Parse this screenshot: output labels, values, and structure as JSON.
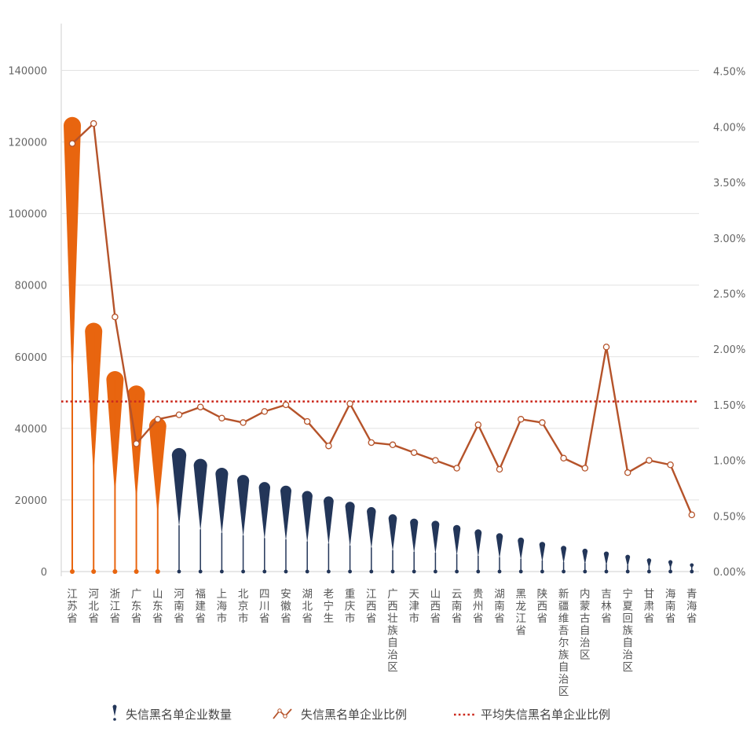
{
  "chart_data": {
    "type": "bar+line",
    "categories": [
      "江苏省",
      "河北省",
      "浙江省",
      "广东省",
      "山东省",
      "河南省",
      "福建省",
      "上海市",
      "北京市",
      "四川省",
      "安徽省",
      "湖北省",
      "老宁生",
      "重庆市",
      "江西省",
      "广西壮族自治区",
      "天津市",
      "山西省",
      "云南省",
      "贵州省",
      "湖南省",
      "黑龙江省",
      "陕西省",
      "新疆维吾尔族自治区",
      "内蒙古自治区",
      "吉林省",
      "宁夏回族自治区",
      "甘肃省",
      "海南省",
      "青海省"
    ],
    "series": [
      {
        "name": "失信黑名单企业数量",
        "axis": "left",
        "type": "bar",
        "values": [
          127000,
          69500,
          56000,
          52000,
          43000,
          34500,
          31500,
          29000,
          27000,
          25000,
          24000,
          22500,
          21000,
          19500,
          18000,
          16000,
          14800,
          14200,
          13000,
          11800,
          10700,
          9500,
          8300,
          7200,
          6400,
          5600,
          4700,
          3700,
          3200,
          2300
        ]
      },
      {
        "name": "失信黑名单企业比例",
        "axis": "right",
        "type": "line",
        "values": [
          3.85,
          4.03,
          2.29,
          1.15,
          1.37,
          1.41,
          1.48,
          1.38,
          1.34,
          1.44,
          1.5,
          1.35,
          1.13,
          1.51,
          1.16,
          1.14,
          1.07,
          1.0,
          0.93,
          1.32,
          0.92,
          1.37,
          1.34,
          1.02,
          0.93,
          2.02,
          0.89,
          1.0,
          0.96,
          0.51
        ]
      }
    ],
    "average_line": {
      "name": "平均失信黑名单企业比例",
      "value": 1.53
    },
    "highlight_count": 5,
    "left_axis": {
      "ylim": [
        0,
        150000
      ],
      "ticks": [
        0,
        20000,
        40000,
        60000,
        80000,
        100000,
        120000,
        140000
      ]
    },
    "right_axis": {
      "ylim": [
        0,
        4.83
      ],
      "ticks": [
        0,
        0.5,
        1.0,
        1.5,
        2.0,
        2.5,
        3.0,
        3.5,
        4.0,
        4.5
      ],
      "tick_labels": [
        "0.00%",
        "0.50%",
        "1.00%",
        "1.50%",
        "2.00%",
        "2.50%",
        "3.00%",
        "3.50%",
        "4.00%",
        "4.50%"
      ]
    },
    "legend": [
      "失信黑名单企业数量",
      "失信黑名单企业比例",
      "平均失信黑名单企业比例"
    ],
    "colors": {
      "highlight": "#e8650f",
      "normal": "#233659",
      "line": "#b5532a",
      "average": "#cc2a1e",
      "grid": "#e2e2e2",
      "axis": "#cfcfcf"
    }
  }
}
